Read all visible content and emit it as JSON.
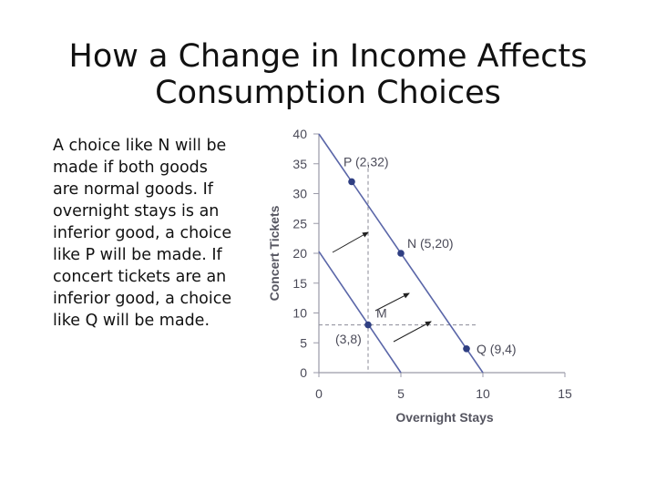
{
  "slide": {
    "title_line1": "How a Change in Income Affects",
    "title_line2": "Consumption Choices",
    "body": "A choice like N will be made if both goods are normal goods. If overnight stays is an inferior good, a choice like P will be made. If concert tickets are an inferior good, a choice like Q will be made."
  },
  "chart_data": {
    "type": "line",
    "title": "",
    "xlabel": "Overnight Stays",
    "ylabel": "Concert Tickets",
    "xlim": [
      0,
      15
    ],
    "ylim": [
      0,
      40
    ],
    "x_ticks": [
      0,
      5,
      10,
      15
    ],
    "y_ticks": [
      0,
      5,
      10,
      15,
      20,
      25,
      30,
      35,
      40
    ],
    "grid": false,
    "series": [
      {
        "values": [
          [
            0,
            20.3
          ],
          [
            5,
            0
          ]
        ]
      },
      {
        "values": [
          [
            0,
            40
          ],
          [
            10,
            0
          ]
        ]
      }
    ],
    "points": [
      {
        "label": "P (2,32)",
        "x": 2,
        "y": 32
      },
      {
        "label": "N (5,20)",
        "x": 5,
        "y": 20
      },
      {
        "label": "Q (9,4)",
        "x": 9,
        "y": 4
      },
      {
        "label": "M",
        "x": 3,
        "y": 8
      }
    ],
    "annotations": [
      "(3,8)"
    ],
    "reference_lines": {
      "x": 3,
      "y": 8
    },
    "colors": {
      "line": "#5a66a8",
      "point": "#2f3f82",
      "text": "#4a4a58",
      "arrow": "#222222"
    }
  }
}
